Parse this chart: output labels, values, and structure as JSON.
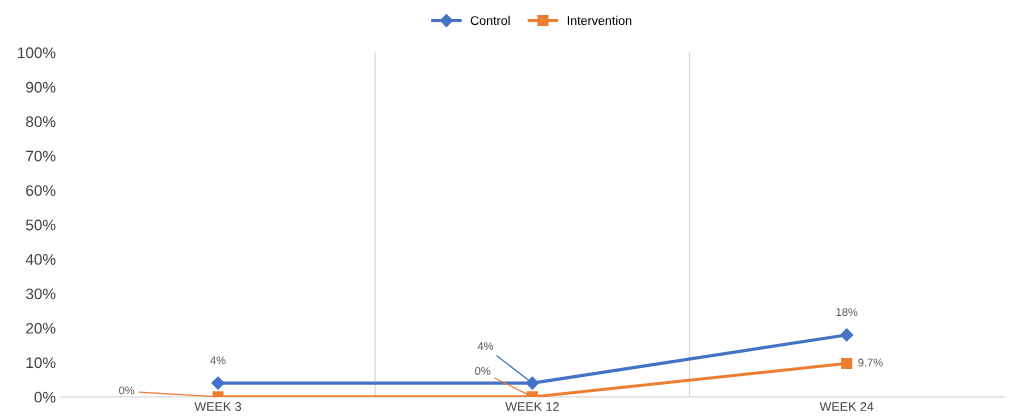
{
  "chart_data": {
    "type": "line",
    "categories": [
      "WEEK 3",
      "WEEK 12",
      "WEEK 24"
    ],
    "series": [
      {
        "name": "Control",
        "color": "#4472c4",
        "marker": "diamond",
        "values": [
          4,
          4,
          18
        ],
        "value_labels": [
          "4%",
          "4%",
          "18%"
        ]
      },
      {
        "name": "Intervention",
        "color": "#ed7d31",
        "marker": "square",
        "values": [
          0,
          0,
          9.7
        ],
        "value_labels": [
          "0%",
          "0%",
          "9.7%"
        ]
      }
    ],
    "ylim": [
      0,
      100
    ],
    "yticks": [
      {
        "value": 0,
        "label": "0%"
      },
      {
        "value": 10,
        "label": "10%"
      },
      {
        "value": 20,
        "label": "20%"
      },
      {
        "value": 30,
        "label": "30%"
      },
      {
        "value": 40,
        "label": "40%"
      },
      {
        "value": 50,
        "label": "50%"
      },
      {
        "value": 60,
        "label": "60%"
      },
      {
        "value": 70,
        "label": "70%"
      },
      {
        "value": 80,
        "label": "80%"
      },
      {
        "value": 90,
        "label": "90%"
      },
      {
        "value": 100,
        "label": "100%"
      }
    ],
    "grid": "x",
    "legend": "top",
    "line_style": "solid"
  }
}
